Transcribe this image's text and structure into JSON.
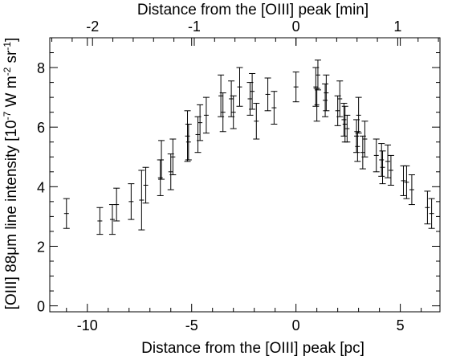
{
  "chart_data": {
    "type": "scatter",
    "error_bars": true,
    "xlabel": "Distance from the [OIII] peak [pc]",
    "x2label": "Distance from the [OIII] peak [min]",
    "ylabel_parts": [
      "[OIII] 88μm line intensity [10",
      "-7",
      " W m",
      "-2",
      " sr",
      "-1",
      "]"
    ],
    "xlim": [
      -11.8,
      6.9
    ],
    "ylim": [
      -0.2,
      9.0
    ],
    "x2lim": [
      -2.42,
      1.415
    ],
    "xticks": [
      -10,
      -5,
      0,
      5
    ],
    "xtick_labels": [
      "-10",
      "-5",
      "0",
      "5"
    ],
    "yticks": [
      0,
      2,
      4,
      6,
      8
    ],
    "ytick_labels": [
      "0",
      "2",
      "4",
      "6",
      "8"
    ],
    "x2ticks": [
      -2,
      -1,
      0,
      1
    ],
    "x2tick_labels": [
      "-2",
      "-1",
      "0",
      "1"
    ],
    "grid": false,
    "series": [
      {
        "points": [
          {
            "x": -11.0,
            "y": 3.1,
            "err": 0.5
          },
          {
            "x": -9.4,
            "y": 2.85,
            "err": 0.45
          },
          {
            "x": -8.8,
            "y": 2.9,
            "err": 0.5
          },
          {
            "x": -8.6,
            "y": 3.4,
            "err": 0.55
          },
          {
            "x": -7.9,
            "y": 3.5,
            "err": 0.6
          },
          {
            "x": -7.4,
            "y": 3.55,
            "err": 1.0
          },
          {
            "x": -7.2,
            "y": 4.05,
            "err": 0.6
          },
          {
            "x": -6.5,
            "y": 4.3,
            "err": 0.6
          },
          {
            "x": -6.45,
            "y": 4.9,
            "err": 0.65
          },
          {
            "x": -6.0,
            "y": 4.5,
            "err": 0.6
          },
          {
            "x": -5.9,
            "y": 5.0,
            "err": 0.6
          },
          {
            "x": -5.2,
            "y": 5.7,
            "err": 0.85
          },
          {
            "x": -5.15,
            "y": 5.5,
            "err": 0.6
          },
          {
            "x": -4.7,
            "y": 5.75,
            "err": 0.6
          },
          {
            "x": -4.6,
            "y": 6.15,
            "err": 0.6
          },
          {
            "x": -4.3,
            "y": 6.4,
            "err": 0.6
          },
          {
            "x": -3.6,
            "y": 7.05,
            "err": 0.7
          },
          {
            "x": -3.5,
            "y": 6.5,
            "err": 0.65
          },
          {
            "x": -3.1,
            "y": 6.95,
            "err": 0.6
          },
          {
            "x": -3.0,
            "y": 6.5,
            "err": 0.55
          },
          {
            "x": -2.7,
            "y": 7.35,
            "err": 0.65
          },
          {
            "x": -2.2,
            "y": 6.95,
            "err": 0.55
          },
          {
            "x": -2.1,
            "y": 7.2,
            "err": 0.6
          },
          {
            "x": -1.9,
            "y": 6.2,
            "err": 0.6
          },
          {
            "x": -1.35,
            "y": 7.1,
            "err": 0.55
          },
          {
            "x": -1.05,
            "y": 6.65,
            "err": 0.55
          },
          {
            "x": 0.0,
            "y": 7.35,
            "err": 0.5
          },
          {
            "x": 0.95,
            "y": 7.35,
            "err": 0.65
          },
          {
            "x": 1.0,
            "y": 6.75,
            "err": 0.55
          },
          {
            "x": 1.05,
            "y": 7.75,
            "err": 0.5
          },
          {
            "x": 1.4,
            "y": 6.9,
            "err": 0.55
          },
          {
            "x": 1.45,
            "y": 7.15,
            "err": 0.6
          },
          {
            "x": 2.0,
            "y": 6.55,
            "err": 0.5
          },
          {
            "x": 2.1,
            "y": 6.95,
            "err": 0.6
          },
          {
            "x": 2.3,
            "y": 6.25,
            "err": 0.55
          },
          {
            "x": 2.35,
            "y": 6.1,
            "err": 0.6
          },
          {
            "x": 2.45,
            "y": 5.95,
            "err": 0.45
          },
          {
            "x": 2.9,
            "y": 5.7,
            "err": 0.55
          },
          {
            "x": 2.95,
            "y": 5.35,
            "err": 0.5
          },
          {
            "x": 3.0,
            "y": 6.4,
            "err": 0.6
          },
          {
            "x": 3.2,
            "y": 5.15,
            "err": 0.55
          },
          {
            "x": 3.3,
            "y": 5.6,
            "err": 0.6
          },
          {
            "x": 3.85,
            "y": 5.05,
            "err": 0.55
          },
          {
            "x": 4.1,
            "y": 4.9,
            "err": 0.55
          },
          {
            "x": 4.15,
            "y": 4.65,
            "err": 0.55
          },
          {
            "x": 4.4,
            "y": 4.85,
            "err": 0.55
          },
          {
            "x": 4.55,
            "y": 4.55,
            "err": 0.5
          },
          {
            "x": 5.15,
            "y": 4.2,
            "err": 0.5
          },
          {
            "x": 5.3,
            "y": 4.15,
            "err": 0.55
          },
          {
            "x": 5.55,
            "y": 3.9,
            "err": 0.5
          },
          {
            "x": 6.3,
            "y": 3.3,
            "err": 0.55
          },
          {
            "x": 6.5,
            "y": 3.1,
            "err": 0.5
          }
        ]
      }
    ]
  }
}
